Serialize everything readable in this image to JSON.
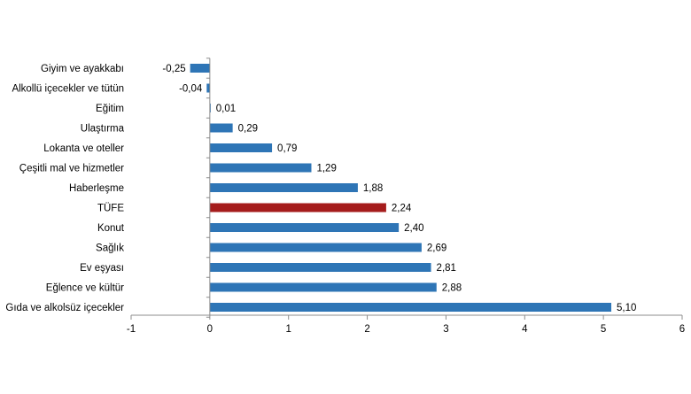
{
  "chart_data": {
    "type": "bar",
    "orientation": "horizontal",
    "categories": [
      "Giyim ve ayakkabı",
      "Alkollü içecekler ve tütün",
      "Eğitim",
      "Ulaştırma",
      "Lokanta ve oteller",
      "Çeşitli mal ve hizmetler",
      "Haberleşme",
      "TÜFE",
      "Konut",
      "Sağlık",
      "Ev eşyası",
      "Eğlence ve kültür",
      "Gıda ve alkolsüz içecekler"
    ],
    "values": [
      -0.25,
      -0.04,
      0.01,
      0.29,
      0.79,
      1.29,
      1.88,
      2.24,
      2.4,
      2.69,
      2.81,
      2.88,
      5.1
    ],
    "value_labels": [
      "-0,25",
      "-0,04",
      "0,01",
      "0,29",
      "0,79",
      "1,29",
      "1,88",
      "2,24",
      "2,40",
      "2,69",
      "2,81",
      "2,88",
      "5,10"
    ],
    "highlight_category": "TÜFE",
    "colors": {
      "bar": "#2E75B6",
      "highlight": "#A51C1C",
      "axis": "#8C8C8C"
    },
    "xlim": [
      -1,
      6
    ],
    "xticks": [
      -1,
      0,
      1,
      2,
      3,
      4,
      5,
      6
    ],
    "grid": false,
    "title": "",
    "xlabel": "",
    "ylabel": ""
  }
}
